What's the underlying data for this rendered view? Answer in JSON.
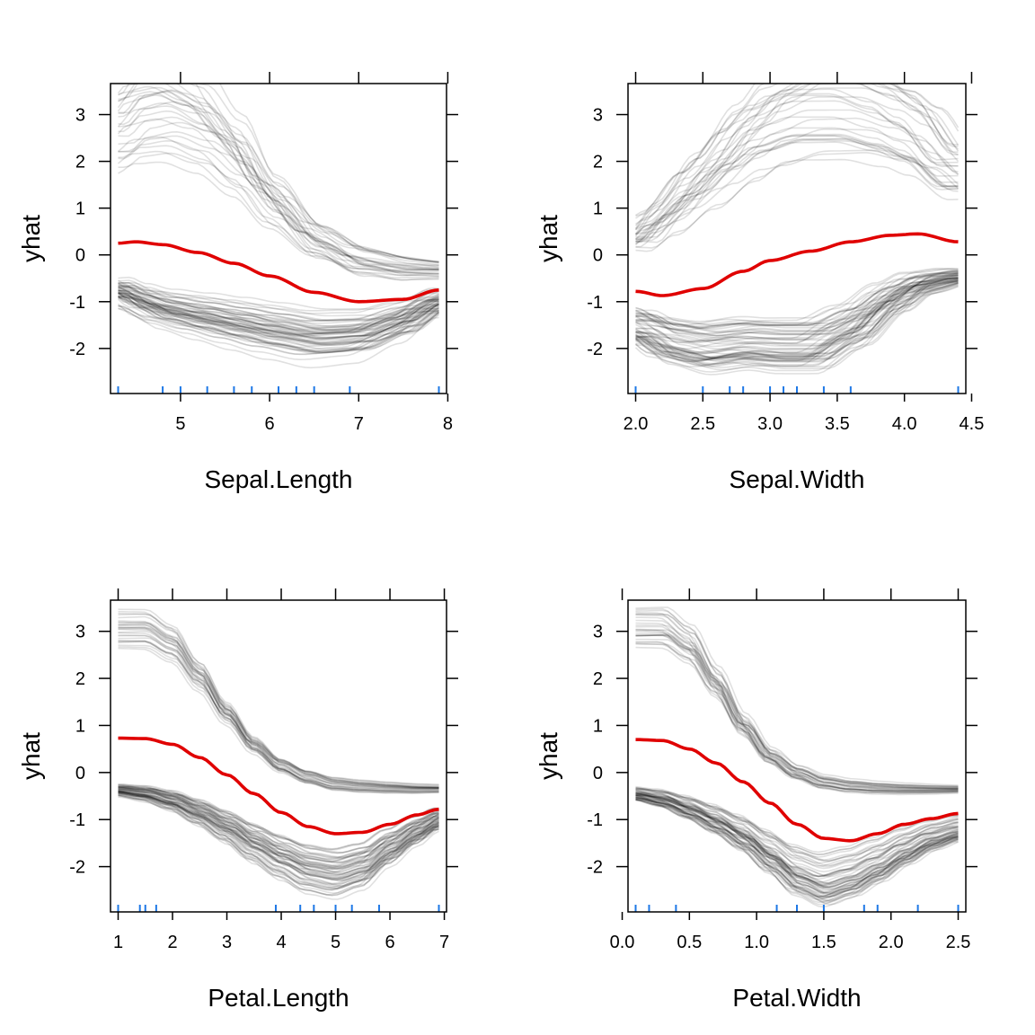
{
  "colors": {
    "ice": "#000000",
    "average": "#e00000",
    "rug": "#1e78e6"
  },
  "chart_data": [
    {
      "type": "line",
      "xlabel": "Sepal.Length",
      "ylabel": "yhat",
      "xlim": [
        4.3,
        7.9
      ],
      "ylim": [
        -2.8,
        3.5
      ],
      "xticks": [
        "5",
        "6",
        "7",
        "8"
      ],
      "xtick_values": [
        5,
        6,
        7,
        8
      ],
      "yticks": [
        "3",
        "2",
        "1",
        "0",
        "-1",
        "-2"
      ],
      "ytick_values": [
        3,
        2,
        1,
        0,
        -1,
        -2
      ],
      "grid": false,
      "average": {
        "x": [
          4.3,
          4.5,
          4.8,
          5.2,
          5.6,
          6.0,
          6.5,
          7.0,
          7.5,
          7.9
        ],
        "y": [
          0.25,
          0.28,
          0.22,
          0.05,
          -0.18,
          -0.45,
          -0.8,
          -1.0,
          -0.95,
          -0.75
        ]
      },
      "ice_groups": [
        {
          "x": [
            4.3,
            4.5,
            4.8,
            5.2,
            5.6,
            6.0,
            6.5,
            7.0,
            7.5,
            7.9
          ],
          "y": [
            2.75,
            3.1,
            3.2,
            2.9,
            2.2,
            1.2,
            0.3,
            -0.15,
            -0.3,
            -0.33
          ],
          "n": 28,
          "spread_y": 0.9,
          "spread_x": 0.35
        },
        {
          "x": [
            4.3,
            4.5,
            4.8,
            5.2,
            5.6,
            6.0,
            6.5,
            7.0,
            7.5,
            7.9
          ],
          "y": [
            -0.75,
            -0.95,
            -1.15,
            -1.3,
            -1.45,
            -1.6,
            -1.75,
            -1.7,
            -1.4,
            -1.0
          ],
          "n": 60,
          "spread_y": 0.55,
          "spread_x": 0.4
        }
      ],
      "rug": [
        4.3,
        4.8,
        5.0,
        5.3,
        5.6,
        5.8,
        6.1,
        6.3,
        6.5,
        6.9,
        7.9
      ]
    },
    {
      "type": "line",
      "xlabel": "Sepal.Width",
      "ylabel": "yhat",
      "xlim": [
        2.0,
        4.4
      ],
      "ylim": [
        -2.8,
        3.5
      ],
      "xticks": [
        "2.0",
        "2.5",
        "3.0",
        "3.5",
        "4.0",
        "4.5"
      ],
      "xtick_values": [
        2.0,
        2.5,
        3.0,
        3.5,
        4.0,
        4.5
      ],
      "yticks": [
        "3",
        "2",
        "1",
        "0",
        "-1",
        "-2"
      ],
      "ytick_values": [
        3,
        2,
        1,
        0,
        -1,
        -2
      ],
      "grid": false,
      "average": {
        "x": [
          2.0,
          2.2,
          2.5,
          2.8,
          3.0,
          3.3,
          3.6,
          3.9,
          4.1,
          4.4
        ],
        "y": [
          -0.78,
          -0.87,
          -0.72,
          -0.35,
          -0.12,
          0.08,
          0.28,
          0.42,
          0.45,
          0.28
        ]
      },
      "ice_groups": [
        {
          "x": [
            2.0,
            2.2,
            2.5,
            2.8,
            3.0,
            3.3,
            3.6,
            3.9,
            4.1,
            4.4
          ],
          "y": [
            0.3,
            0.8,
            1.6,
            2.4,
            2.85,
            3.15,
            3.15,
            2.9,
            2.6,
            1.8
          ],
          "n": 30,
          "spread_y": 0.7,
          "spread_x": 0.35
        },
        {
          "x": [
            2.0,
            2.2,
            2.5,
            2.8,
            3.0,
            3.3,
            3.6,
            3.9,
            4.1,
            4.4
          ],
          "y": [
            -1.5,
            -1.8,
            -1.95,
            -1.85,
            -1.9,
            -1.9,
            -1.5,
            -0.9,
            -0.6,
            -0.45
          ],
          "n": 60,
          "spread_y": 0.55,
          "spread_x": 0.3
        }
      ],
      "rug": [
        2.0,
        2.5,
        2.7,
        2.8,
        3.0,
        3.1,
        3.2,
        3.4,
        3.6,
        4.4
      ]
    },
    {
      "type": "line",
      "xlabel": "Petal.Length",
      "ylabel": "yhat",
      "xlim": [
        1.0,
        6.9
      ],
      "ylim": [
        -2.8,
        3.5
      ],
      "xticks": [
        "1",
        "2",
        "3",
        "4",
        "5",
        "6",
        "7"
      ],
      "xtick_values": [
        1,
        2,
        3,
        4,
        5,
        6,
        7
      ],
      "yticks": [
        "3",
        "2",
        "1",
        "0",
        "-1",
        "-2"
      ],
      "ytick_values": [
        3,
        2,
        1,
        0,
        -1,
        -2
      ],
      "grid": false,
      "average": {
        "x": [
          1.0,
          1.5,
          2.0,
          2.5,
          3.0,
          3.5,
          4.0,
          4.5,
          5.0,
          5.5,
          6.0,
          6.5,
          6.9
        ],
        "y": [
          0.73,
          0.72,
          0.6,
          0.32,
          -0.05,
          -0.45,
          -0.85,
          -1.15,
          -1.3,
          -1.27,
          -1.1,
          -0.9,
          -0.78
        ]
      },
      "ice_groups": [
        {
          "x": [
            1.0,
            1.5,
            2.0,
            2.5,
            3.0,
            3.5,
            4.0,
            4.5,
            5.0,
            5.5,
            6.0,
            6.5,
            6.9
          ],
          "y": [
            3.1,
            3.1,
            2.8,
            2.1,
            1.3,
            0.6,
            0.15,
            -0.1,
            -0.25,
            -0.3,
            -0.33,
            -0.35,
            -0.35
          ],
          "n": 28,
          "spread_y": 0.3,
          "spread_x": 0.08
        },
        {
          "x": [
            1.0,
            1.5,
            2.0,
            2.5,
            3.0,
            3.5,
            4.0,
            4.5,
            5.0,
            5.5,
            6.0,
            6.5,
            6.9
          ],
          "y": [
            -0.38,
            -0.45,
            -0.6,
            -0.85,
            -1.15,
            -1.5,
            -1.8,
            -2.05,
            -2.15,
            -2.0,
            -1.6,
            -1.25,
            -1.0
          ],
          "n": 60,
          "spread_y": 0.45,
          "spread_x": 0.25
        }
      ],
      "rug": [
        1.0,
        1.4,
        1.5,
        1.7,
        3.9,
        4.35,
        4.6,
        5.0,
        5.3,
        5.8,
        6.9
      ]
    },
    {
      "type": "line",
      "xlabel": "Petal.Width",
      "ylabel": "yhat",
      "xlim": [
        0.1,
        2.5
      ],
      "ylim": [
        -2.8,
        3.5
      ],
      "xticks": [
        "0.0",
        "0.5",
        "1.0",
        "1.5",
        "2.0",
        "2.5"
      ],
      "xtick_values": [
        0.0,
        0.5,
        1.0,
        1.5,
        2.0,
        2.5
      ],
      "yticks": [
        "3",
        "2",
        "1",
        "0",
        "-1",
        "-2"
      ],
      "ytick_values": [
        3,
        2,
        1,
        0,
        -1,
        -2
      ],
      "grid": false,
      "average": {
        "x": [
          0.1,
          0.3,
          0.5,
          0.7,
          0.9,
          1.1,
          1.3,
          1.5,
          1.7,
          1.9,
          2.1,
          2.3,
          2.5
        ],
        "y": [
          0.7,
          0.68,
          0.5,
          0.2,
          -0.2,
          -0.65,
          -1.1,
          -1.4,
          -1.45,
          -1.3,
          -1.1,
          -0.98,
          -0.87
        ]
      },
      "ice_groups": [
        {
          "x": [
            0.1,
            0.3,
            0.5,
            0.7,
            0.9,
            1.1,
            1.3,
            1.5,
            1.7,
            1.9,
            2.1,
            2.3,
            2.5
          ],
          "y": [
            3.05,
            3.05,
            2.7,
            1.9,
            1.0,
            0.35,
            0.0,
            -0.2,
            -0.28,
            -0.32,
            -0.34,
            -0.35,
            -0.35
          ],
          "n": 28,
          "spread_y": 0.3,
          "spread_x": 0.06
        },
        {
          "x": [
            0.1,
            0.3,
            0.5,
            0.7,
            0.9,
            1.1,
            1.3,
            1.5,
            1.7,
            1.9,
            2.1,
            2.3,
            2.5
          ],
          "y": [
            -0.45,
            -0.55,
            -0.75,
            -1.0,
            -1.3,
            -1.7,
            -2.1,
            -2.3,
            -2.15,
            -1.9,
            -1.6,
            -1.35,
            -1.2
          ],
          "n": 60,
          "spread_y": 0.45,
          "spread_x": 0.1
        }
      ],
      "rug": [
        0.1,
        0.2,
        0.4,
        1.15,
        1.3,
        1.5,
        1.8,
        1.9,
        2.2,
        2.5
      ]
    }
  ]
}
